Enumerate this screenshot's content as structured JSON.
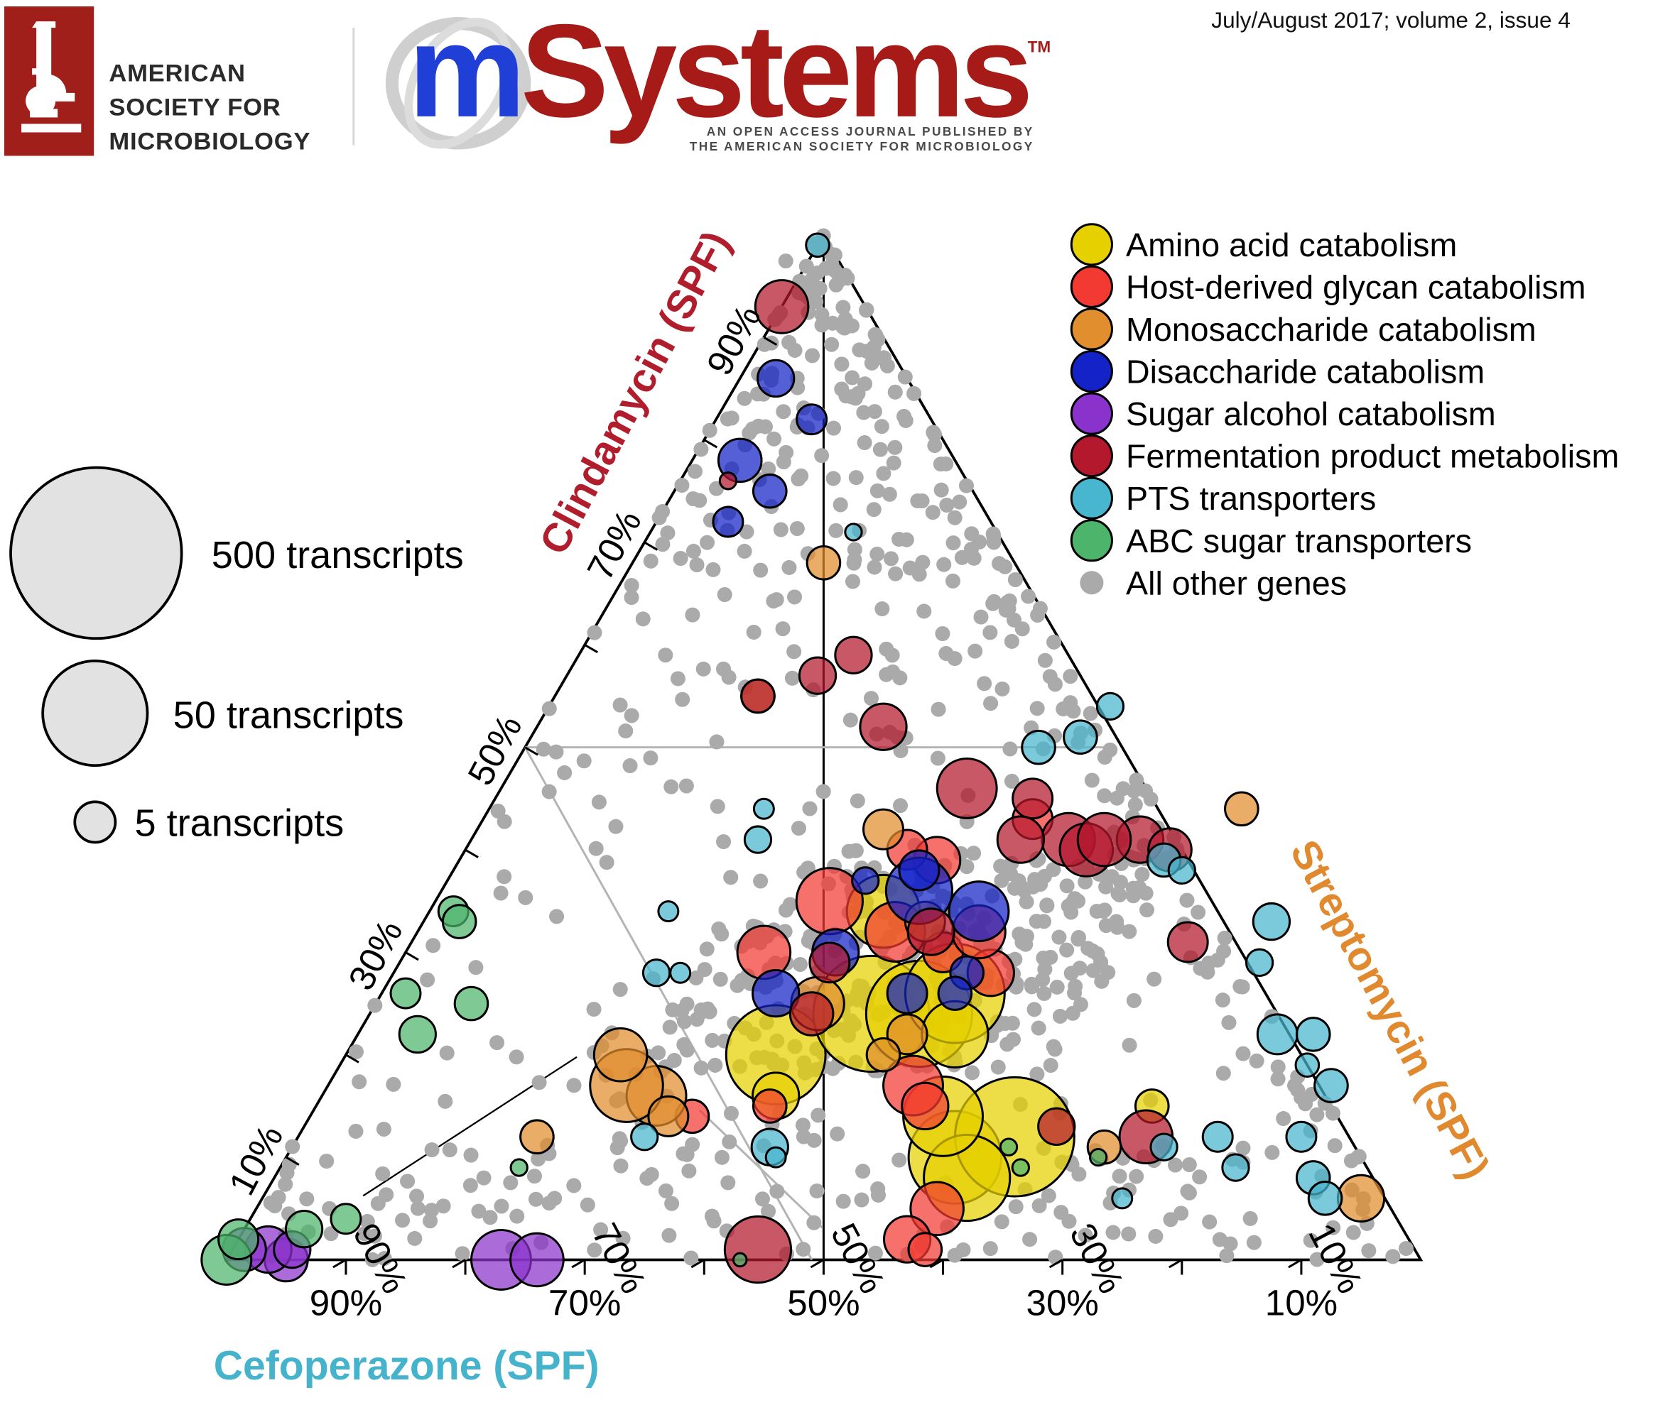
{
  "header": {
    "publisher_line1": "AMERICAN",
    "publisher_line2": "SOCIETY FOR",
    "publisher_line3": "MICROBIOLOGY",
    "journal_logo_m": "m",
    "journal_logo_rest": "Systems",
    "journal_trademark": "TM",
    "journal_tagline1": "AN OPEN ACCESS JOURNAL PUBLISHED BY",
    "journal_tagline2": "THE AMERICAN SOCIETY FOR MICROBIOLOGY",
    "issue_info": "July/August 2017; volume 2, issue 4",
    "colors": {
      "asm_red": "#a01f1a",
      "journal_blue": "#1f3fd6",
      "journal_red": "#a61b18"
    }
  },
  "chart_data": {
    "type": "scatter",
    "subtype": "ternary-bubble",
    "axes": {
      "left": {
        "label": "Clindamycin (SPF)",
        "color": "#b01e2d",
        "ticks": [
          "10%",
          "30%",
          "50%",
          "70%",
          "90%"
        ]
      },
      "right": {
        "label": "Streptomycin (SPF)",
        "color": "#e0892e",
        "ticks": [
          "10%",
          "30%",
          "50%",
          "70%",
          "90%"
        ]
      },
      "bottom": {
        "label": "Cefoperazone (SPF)",
        "color": "#45b3cc",
        "ticks": [
          "90%",
          "70%",
          "50%",
          "30%",
          "10%"
        ]
      }
    },
    "size_legend": [
      {
        "label": "500 transcripts",
        "value": 500
      },
      {
        "label": "50 transcripts",
        "value": 50
      },
      {
        "label": "5 transcripts",
        "value": 5
      }
    ],
    "legend_position": "top-right",
    "series": [
      {
        "name": "Amino acid catabolism",
        "color": "#e6d000",
        "points": [
          [
            0.2,
            0.36,
            30
          ],
          [
            0.24,
            0.42,
            35
          ],
          [
            0.24,
            0.46,
            32
          ],
          [
            0.26,
            0.48,
            30
          ],
          [
            0.34,
            0.38,
            22
          ],
          [
            0.1,
            0.56,
            28
          ],
          [
            0.12,
            0.6,
            36
          ],
          [
            0.08,
            0.58,
            26
          ],
          [
            0.14,
            0.53,
            24
          ],
          [
            0.16,
            0.38,
            14
          ],
          [
            0.15,
            0.7,
            10
          ],
          [
            0.22,
            0.5,
            20
          ]
        ]
      },
      {
        "name": "Host-derived glycan catabolism",
        "color": "#f23a32",
        "points": [
          [
            0.39,
            0.4,
            14
          ],
          [
            0.35,
            0.33,
            20
          ],
          [
            0.32,
            0.4,
            18
          ],
          [
            0.3,
            0.3,
            16
          ],
          [
            0.4,
            0.37,
            12
          ],
          [
            0.3,
            0.45,
            12
          ],
          [
            0.28,
            0.5,
            14
          ],
          [
            0.05,
            0.57,
            16
          ],
          [
            0.17,
            0.49,
            18
          ],
          [
            0.15,
            0.51,
            14
          ],
          [
            0.43,
            0.46,
            12
          ],
          [
            0.15,
            0.38,
            10
          ],
          [
            0.14,
            0.32,
            10
          ],
          [
            0.32,
            0.47,
            16
          ],
          [
            0.02,
            0.56,
            14
          ],
          [
            0.01,
            0.58,
            10
          ]
        ]
      },
      {
        "name": "Monosaccharide catabolism",
        "color": "#e08e2e",
        "points": [
          [
            0.16,
            0.28,
            18
          ],
          [
            0.17,
            0.25,
            22
          ],
          [
            0.2,
            0.23,
            16
          ],
          [
            0.25,
            0.37,
            16
          ],
          [
            0.33,
            0.42,
            12
          ],
          [
            0.68,
            0.16,
            10
          ],
          [
            0.55,
            0.17,
            10
          ],
          [
            0.22,
            0.46,
            12
          ],
          [
            0.44,
            0.63,
            10
          ],
          [
            0.06,
            0.92,
            14
          ],
          [
            0.12,
            0.2,
            10
          ],
          [
            0.14,
            0.3,
            12
          ],
          [
            0.11,
            0.68,
            10
          ],
          [
            0.2,
            0.45,
            10
          ],
          [
            0.42,
            0.34,
            12
          ]
        ]
      },
      {
        "name": "Disaccharide catabolism",
        "color": "#1323c8",
        "points": [
          [
            0.86,
            0.03,
            11
          ],
          [
            0.78,
            0.04,
            13
          ],
          [
            0.75,
            0.08,
            10
          ],
          [
            0.72,
            0.06,
            9
          ],
          [
            0.82,
            0.08,
            9
          ],
          [
            0.36,
            0.4,
            20
          ],
          [
            0.34,
            0.46,
            18
          ],
          [
            0.3,
            0.36,
            14
          ],
          [
            0.26,
            0.33,
            14
          ],
          [
            0.26,
            0.44,
            12
          ],
          [
            0.38,
            0.39,
            12
          ],
          [
            0.28,
            0.48,
            10
          ],
          [
            0.37,
            0.35,
            8
          ],
          [
            0.26,
            0.48,
            10
          ]
        ]
      },
      {
        "name": "Sugar alcohol catabolism",
        "color": "#8a33cc",
        "points": [
          [
            0.0,
            0.23,
            18
          ],
          [
            0.0,
            0.26,
            16
          ],
          [
            0.0,
            0.05,
            13
          ],
          [
            0.01,
            0.03,
            14
          ],
          [
            0.01,
            0.01,
            13
          ],
          [
            0.01,
            0.05,
            11
          ]
        ]
      },
      {
        "name": "Fermentation product metabolism",
        "color": "#b4182c",
        "points": [
          [
            0.93,
            0.0,
            16
          ],
          [
            0.76,
            0.04,
            5
          ],
          [
            0.59,
            0.23,
            11
          ],
          [
            0.57,
            0.21,
            11
          ],
          [
            0.55,
            0.17,
            10
          ],
          [
            0.52,
            0.29,
            14
          ],
          [
            0.46,
            0.39,
            18
          ],
          [
            0.45,
            0.45,
            12
          ],
          [
            0.41,
            0.5,
            16
          ],
          [
            0.4,
            0.52,
            16
          ],
          [
            0.41,
            0.56,
            14
          ],
          [
            0.4,
            0.59,
            13
          ],
          [
            0.31,
            0.65,
            12
          ],
          [
            0.12,
            0.71,
            16
          ],
          [
            0.13,
            0.63,
            11
          ],
          [
            0.29,
            0.36,
            12
          ],
          [
            0.01,
            0.44,
            20
          ],
          [
            0.24,
            0.37,
            13
          ],
          [
            0.41,
            0.46,
            14
          ],
          [
            0.32,
            0.43,
            14
          ],
          [
            0.41,
            0.53,
            16
          ]
        ]
      },
      {
        "name": "PTS transporters",
        "color": "#48b6cf",
        "points": [
          [
            0.99,
            0.0,
            7
          ],
          [
            0.71,
            0.17,
            5
          ],
          [
            0.51,
            0.46,
            10
          ],
          [
            0.54,
            0.47,
            8
          ],
          [
            0.5,
            0.43,
            10
          ],
          [
            0.39,
            0.59,
            10
          ],
          [
            0.38,
            0.61,
            8
          ],
          [
            0.33,
            0.71,
            11
          ],
          [
            0.29,
            0.72,
            8
          ],
          [
            0.22,
            0.77,
            12
          ],
          [
            0.22,
            0.8,
            10
          ],
          [
            0.17,
            0.84,
            10
          ],
          [
            0.12,
            0.84,
            9
          ],
          [
            0.08,
            0.87,
            10
          ],
          [
            0.06,
            0.89,
            10
          ],
          [
            0.41,
            0.24,
            8
          ],
          [
            0.12,
            0.29,
            8
          ],
          [
            0.11,
            0.4,
            11
          ],
          [
            0.11,
            0.73,
            8
          ],
          [
            0.28,
            0.22,
            8
          ],
          [
            0.28,
            0.24,
            6
          ],
          [
            0.34,
            0.2,
            6
          ],
          [
            0.44,
            0.23,
            6
          ],
          [
            0.1,
            0.41,
            6
          ],
          [
            0.12,
            0.77,
            9
          ],
          [
            0.19,
            0.81,
            7
          ],
          [
            0.09,
            0.8,
            8
          ],
          [
            0.06,
            0.72,
            6
          ]
        ]
      },
      {
        "name": "ABC sugar transporters",
        "color": "#4db46b",
        "points": [
          [
            0.0,
            0.0,
            15
          ],
          [
            0.02,
            0.0,
            12
          ],
          [
            0.03,
            0.05,
            11
          ],
          [
            0.04,
            0.08,
            9
          ],
          [
            0.22,
            0.05,
            11
          ],
          [
            0.26,
            0.02,
            9
          ],
          [
            0.34,
            0.02,
            9
          ],
          [
            0.0,
            0.43,
            4
          ],
          [
            0.09,
            0.2,
            5
          ],
          [
            0.11,
            0.6,
            5
          ],
          [
            0.09,
            0.62,
            5
          ],
          [
            0.1,
            0.68,
            5
          ],
          [
            0.25,
            0.08,
            10
          ],
          [
            0.33,
            0.03,
            10
          ]
        ]
      },
      {
        "name": "All other genes",
        "color": "#aaaaaa",
        "points": []
      }
    ],
    "grid": false
  }
}
